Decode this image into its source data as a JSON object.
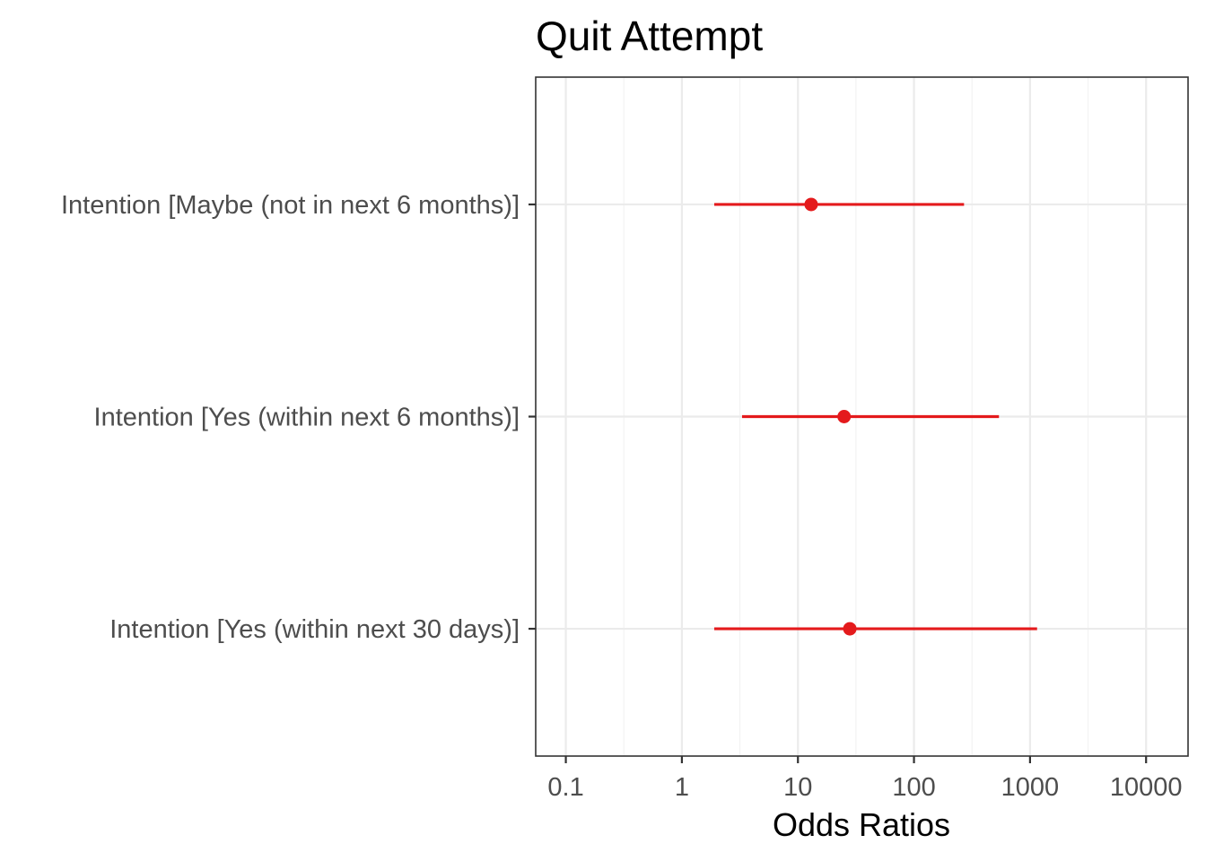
{
  "chart_data": {
    "type": "scatter",
    "title": "Quit Attempt",
    "xlabel": "Odds Ratios",
    "ylabel": "",
    "x_scale": "log10",
    "xlim": [
      0.055,
      23000
    ],
    "x_ticks": [
      0.1,
      1,
      10,
      100,
      1000,
      10000
    ],
    "x_tick_labels": [
      "0.1",
      "1",
      "10",
      "100",
      "1000",
      "10000"
    ],
    "grid": true,
    "legend": "none",
    "point_color": "#e41a1c",
    "categories": [
      "Intention [Maybe (not in next 6 months)]",
      "Intention [Yes (within next 6 months)]",
      "Intention [Yes (within next 30 days)]"
    ],
    "estimates": [
      13,
      25,
      28
    ],
    "ci_low": [
      1.9,
      3.3,
      1.9
    ],
    "ci_high": [
      270,
      540,
      1150
    ]
  }
}
